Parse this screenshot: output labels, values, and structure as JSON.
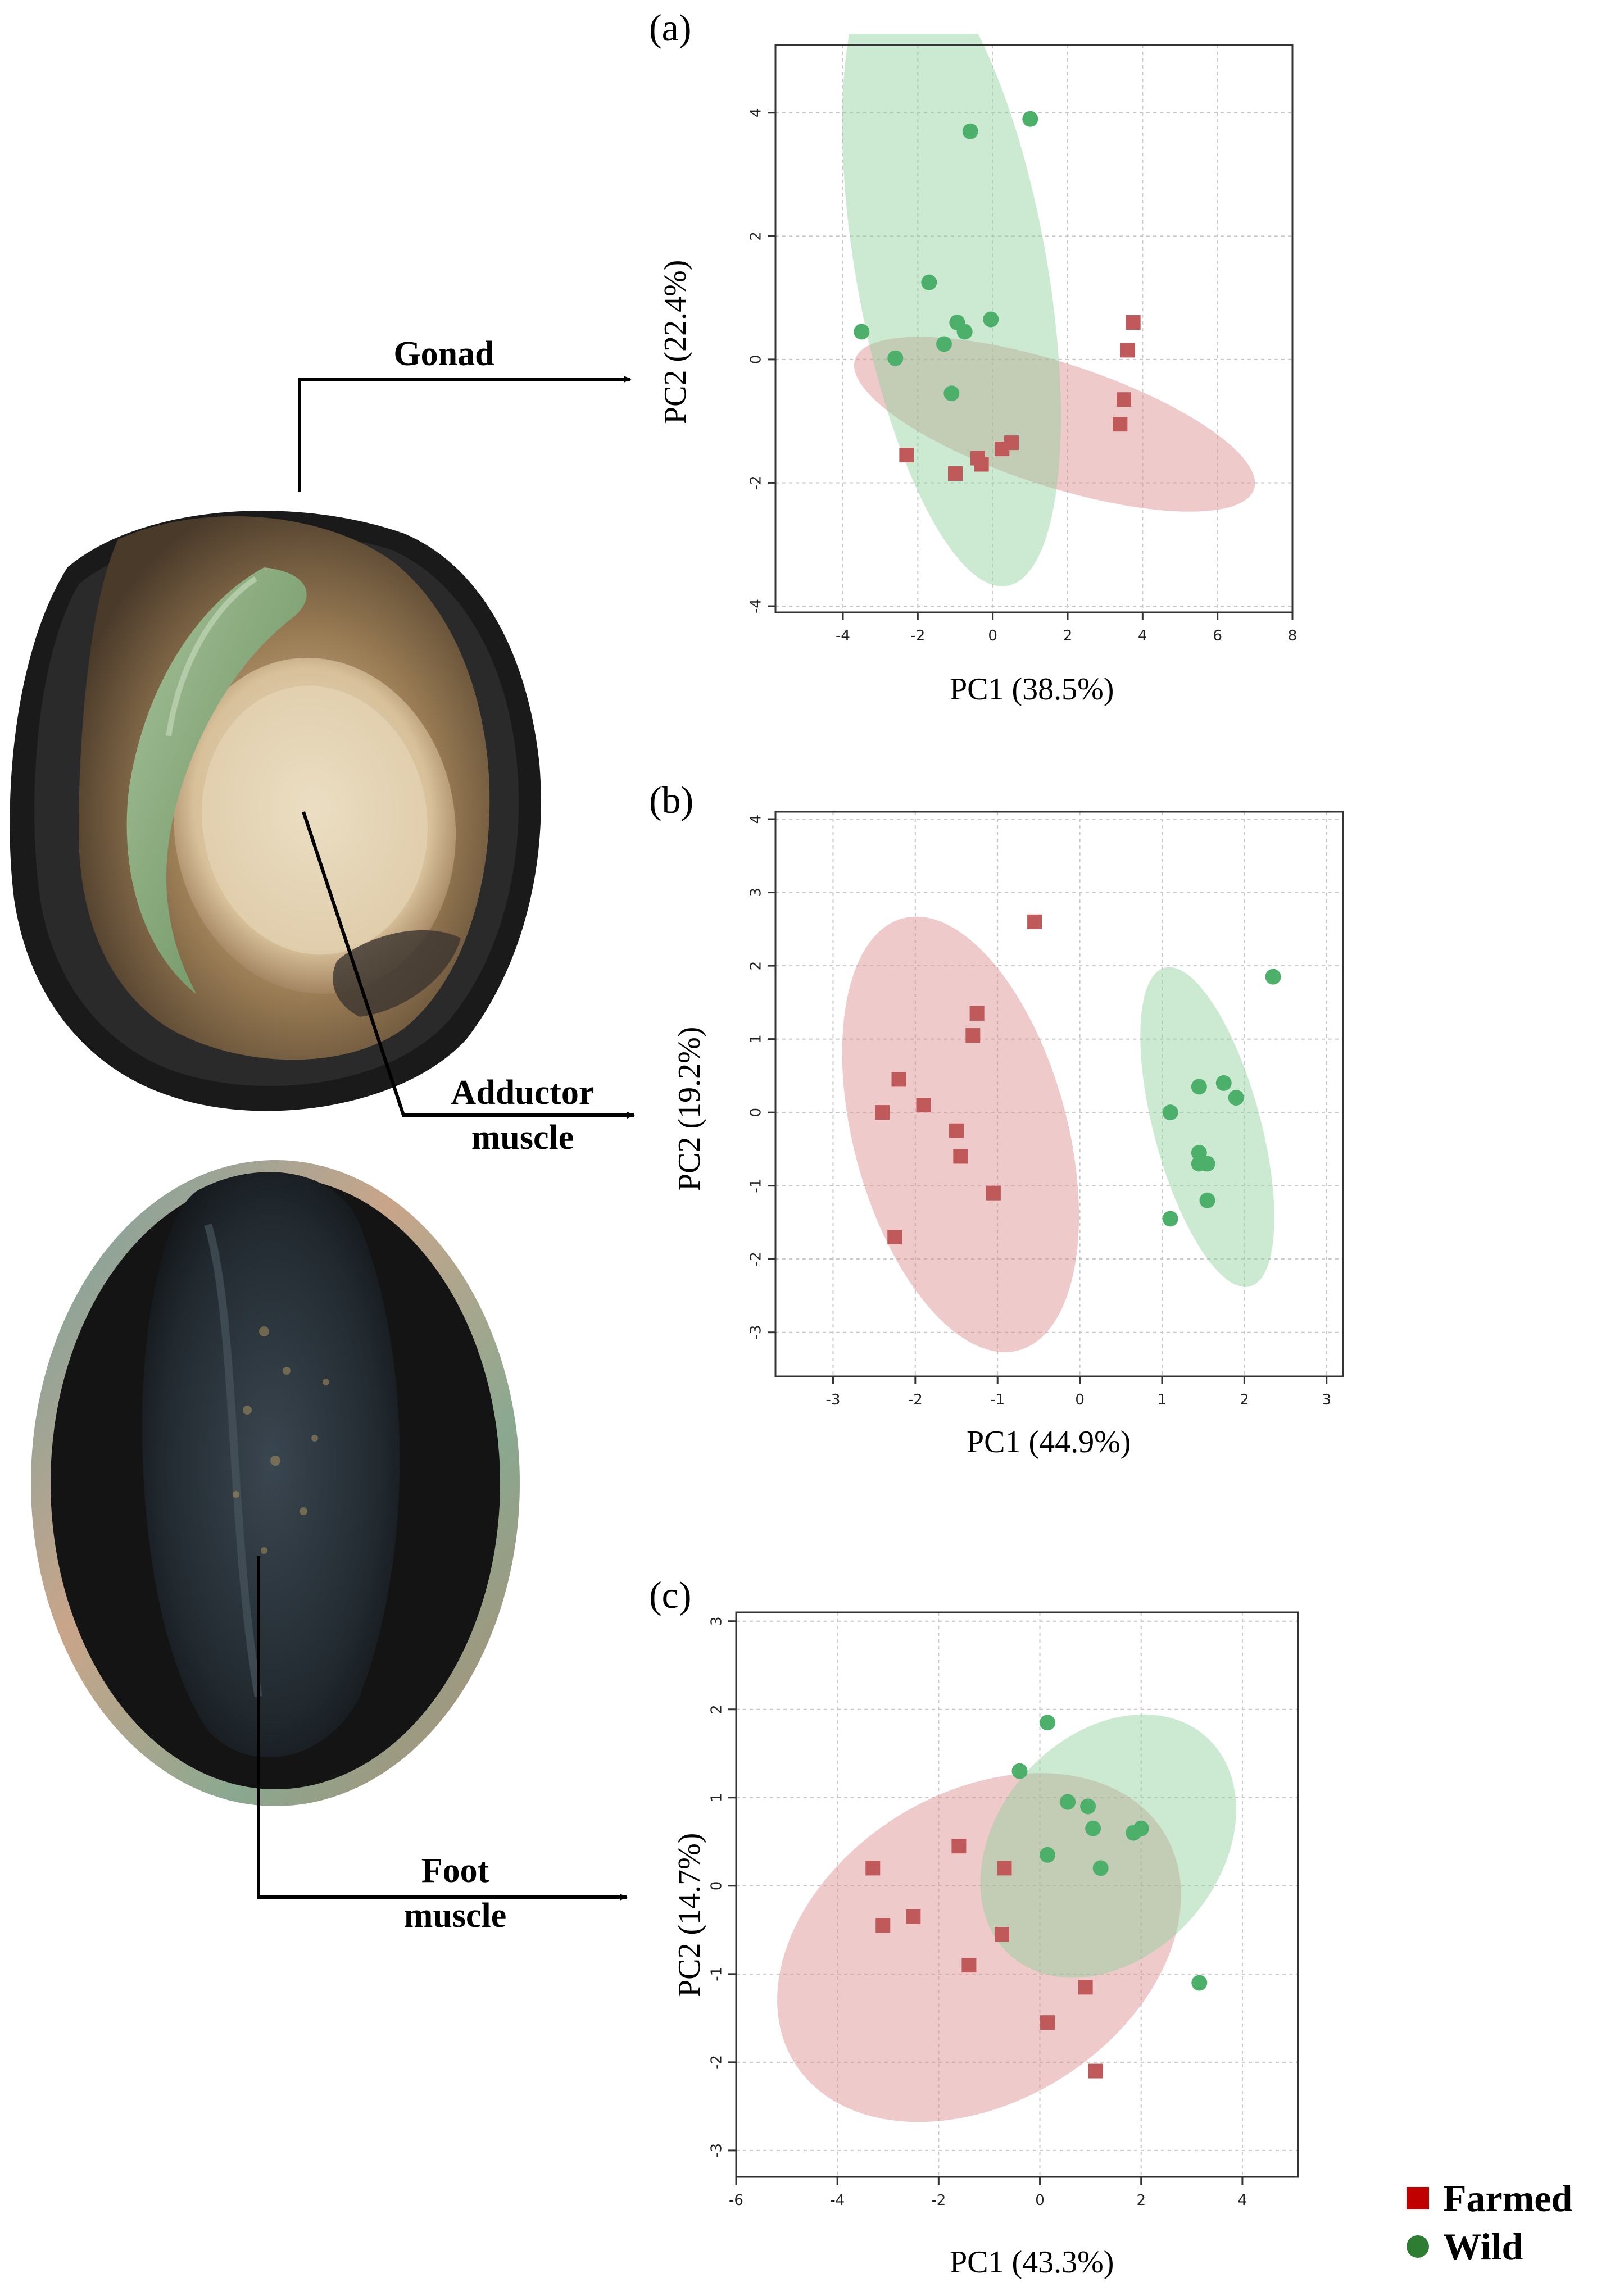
{
  "labels": {
    "gonad": "Gonad",
    "adductor_line1": "Adductor",
    "adductor_line2": "muscle",
    "foot_line1": "Foot",
    "foot_line2": "muscle"
  },
  "legend": [
    {
      "label": "Farmed",
      "color": "#c00000",
      "marker": "square"
    },
    {
      "label": "Wild",
      "color": "#2e7d32",
      "marker": "circle"
    }
  ],
  "colors": {
    "farmed_point": "#c05a5a",
    "farmed_ellipse": "#d98a8a",
    "wild_point": "#4caf6a",
    "wild_ellipse": "#8fd19b"
  },
  "chart_data": [
    {
      "id": "a",
      "type": "scatter",
      "panel_label": "(a)",
      "xlabel": "PC1 (38.5%)",
      "ylabel": "PC2 (22.4%)",
      "xlim": [
        -5.8,
        8.0
      ],
      "ylim": [
        -4.1,
        5.1
      ],
      "xticks": [
        -4,
        -2,
        0,
        2,
        4,
        6,
        8
      ],
      "yticks": [
        -4,
        -2,
        0,
        2,
        4
      ],
      "grid": true,
      "series": [
        {
          "name": "Farmed",
          "marker": "square",
          "points": [
            [
              -2.3,
              -1.55
            ],
            [
              -1.0,
              -1.85
            ],
            [
              -0.4,
              -1.6
            ],
            [
              -0.3,
              -1.7
            ],
            [
              0.25,
              -1.45
            ],
            [
              0.5,
              -1.35
            ],
            [
              3.4,
              -1.05
            ],
            [
              3.5,
              -0.65
            ],
            [
              3.6,
              0.15
            ],
            [
              3.75,
              0.6
            ]
          ],
          "ellipse": {
            "cx": 1.65,
            "cy": -1.05,
            "rx": 5.6,
            "ry": 1.0,
            "angle_deg": 18
          }
        },
        {
          "name": "Wild",
          "marker": "circle",
          "points": [
            [
              -3.5,
              0.45
            ],
            [
              -2.6,
              0.02
            ],
            [
              -1.7,
              1.25
            ],
            [
              -1.3,
              0.25
            ],
            [
              -1.1,
              -0.55
            ],
            [
              -0.95,
              0.6
            ],
            [
              -0.75,
              0.45
            ],
            [
              -0.6,
              3.7
            ],
            [
              -0.05,
              0.65
            ],
            [
              1.0,
              3.9
            ]
          ],
          "ellipse": {
            "cx": -1.1,
            "cy": 1.45,
            "rx": 2.55,
            "ry": 5.2,
            "angle_deg": -10
          }
        }
      ]
    },
    {
      "id": "b",
      "type": "scatter",
      "panel_label": "(b)",
      "xlabel": "PC1 (44.9%)",
      "ylabel": "PC2 (19.2%)",
      "xlim": [
        -3.7,
        3.2
      ],
      "ylim": [
        -3.6,
        4.1
      ],
      "xticks": [
        -3,
        -2,
        -1,
        0,
        1,
        2,
        3
      ],
      "yticks": [
        -3,
        -2,
        -1,
        0,
        1,
        2,
        3,
        4
      ],
      "grid": true,
      "series": [
        {
          "name": "Farmed",
          "marker": "square",
          "points": [
            [
              -2.4,
              0.0
            ],
            [
              -2.2,
              0.45
            ],
            [
              -1.9,
              0.1
            ],
            [
              -2.25,
              -1.7
            ],
            [
              -1.5,
              -0.25
            ],
            [
              -1.45,
              -0.6
            ],
            [
              -1.3,
              1.05
            ],
            [
              -1.25,
              1.35
            ],
            [
              -1.05,
              -1.1
            ],
            [
              -0.55,
              2.6
            ]
          ],
          "ellipse": {
            "cx": -1.45,
            "cy": -0.3,
            "rx": 1.3,
            "ry": 3.05,
            "angle_deg": -15
          }
        },
        {
          "name": "Wild",
          "marker": "circle",
          "points": [
            [
              1.1,
              0.0
            ],
            [
              1.1,
              -1.45
            ],
            [
              1.45,
              0.35
            ],
            [
              1.45,
              -0.55
            ],
            [
              1.45,
              -0.7
            ],
            [
              1.55,
              -0.7
            ],
            [
              1.55,
              -1.2
            ],
            [
              1.75,
              0.4
            ],
            [
              1.9,
              0.2
            ],
            [
              2.35,
              1.85
            ]
          ],
          "ellipse": {
            "cx": 1.55,
            "cy": -0.2,
            "rx": 0.65,
            "ry": 2.25,
            "angle_deg": -15
          }
        }
      ]
    },
    {
      "id": "c",
      "type": "scatter",
      "panel_label": "(c)",
      "xlabel": "PC1 (43.3%)",
      "ylabel": "PC2 (14.7%)",
      "xlim": [
        -6,
        5.1
      ],
      "ylim": [
        -3.3,
        3.1
      ],
      "xticks": [
        -6,
        -4,
        -2,
        0,
        2,
        4
      ],
      "yticks": [
        -3,
        -2,
        -1,
        0,
        1,
        2,
        3
      ],
      "grid": true,
      "series": [
        {
          "name": "Farmed",
          "marker": "square",
          "points": [
            [
              -3.3,
              0.2
            ],
            [
              -3.1,
              -0.45
            ],
            [
              -2.5,
              -0.35
            ],
            [
              -1.6,
              0.45
            ],
            [
              -1.4,
              -0.9
            ],
            [
              -0.75,
              -0.55
            ],
            [
              -0.7,
              0.2
            ],
            [
              0.15,
              -1.55
            ],
            [
              0.9,
              -1.15
            ],
            [
              1.1,
              -2.1
            ]
          ],
          "ellipse": {
            "cx": -1.2,
            "cy": -0.7,
            "rx": 4.3,
            "ry": 1.75,
            "angle_deg": -32
          }
        },
        {
          "name": "Wild",
          "marker": "circle",
          "points": [
            [
              -0.4,
              1.3
            ],
            [
              0.15,
              1.85
            ],
            [
              0.15,
              0.35
            ],
            [
              0.55,
              0.95
            ],
            [
              0.95,
              0.9
            ],
            [
              1.05,
              0.65
            ],
            [
              1.2,
              0.2
            ],
            [
              1.85,
              0.6
            ],
            [
              2.0,
              0.65
            ],
            [
              3.15,
              -1.1
            ]
          ],
          "ellipse": {
            "cx": 1.35,
            "cy": 0.45,
            "rx": 2.9,
            "ry": 1.25,
            "angle_deg": -48
          }
        }
      ]
    }
  ]
}
